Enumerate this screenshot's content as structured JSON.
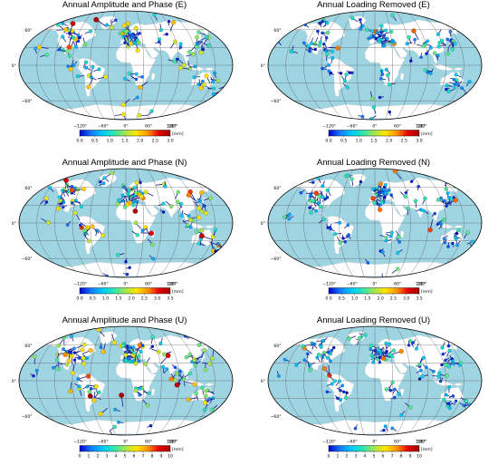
{
  "figure": {
    "panels": [
      {
        "id": "E-amp",
        "title": "Annual Amplitude and Phase (E)",
        "colorbar": {
          "ticks": [
            "0.0",
            "0.5",
            "1.0",
            "1.5",
            "2.0",
            "2.5",
            "3.0"
          ],
          "unit": "[mm]",
          "max": 3.0
        },
        "lon_labels": [
          "−120°",
          "−60°",
          "0°",
          "60°",
          "120°",
          "180°"
        ],
        "lat_labels": [
          "60°",
          "0°",
          "−60°"
        ]
      },
      {
        "id": "E-loading",
        "title": "Annual Loading Removed (E)",
        "colorbar": {
          "ticks": [
            "0.0",
            "0.5",
            "1.0",
            "1.5",
            "2.0",
            "2.5",
            "3.0"
          ],
          "unit": "[mm]",
          "max": 3.0
        },
        "lon_labels": [
          "−120°",
          "−60°",
          "0°",
          "60°",
          "120°",
          "180°"
        ],
        "lat_labels": [
          "60°",
          "0°",
          "−60°"
        ]
      },
      {
        "id": "N-amp",
        "title": "Annual Amplitude and Phase (N)",
        "colorbar": {
          "ticks": [
            "0.0",
            "0.5",
            "1.0",
            "1.5",
            "2.0",
            "2.5",
            "3.0",
            "3.5"
          ],
          "unit": "[mm]",
          "max": 3.5
        },
        "lon_labels": [
          "−120°",
          "−60°",
          "0°",
          "60°",
          "120°",
          "180°"
        ],
        "lat_labels": [
          "60°",
          "0°",
          "−60°"
        ]
      },
      {
        "id": "N-loading",
        "title": "Annual Loading Removed (N)",
        "colorbar": {
          "ticks": [
            "0.0",
            "0.5",
            "1.0",
            "1.5",
            "2.0",
            "2.5",
            "3.0",
            "3.5"
          ],
          "unit": "[mm]",
          "max": 3.5
        },
        "lon_labels": [
          "−120°",
          "−60°",
          "0°",
          "60°",
          "120°",
          "180°"
        ],
        "lat_labels": [
          "60°",
          "0°",
          "−60°"
        ]
      },
      {
        "id": "U-amp",
        "title": "Annual Amplitude and Phase (U)",
        "colorbar": {
          "ticks": [
            "0",
            "1",
            "2",
            "3",
            "4",
            "5",
            "6",
            "7",
            "8",
            "9",
            "10"
          ],
          "unit": "[mm]",
          "max": 10
        },
        "lon_labels": [
          "−120°",
          "−60°",
          "0°",
          "60°",
          "120°",
          "180°"
        ],
        "lat_labels": [
          "60°",
          "0°",
          "−60°"
        ]
      },
      {
        "id": "U-loading",
        "title": "Annual Loading Removed (U)",
        "colorbar": {
          "ticks": [
            "0",
            "1",
            "2",
            "3",
            "4",
            "5",
            "6",
            "7",
            "8",
            "9",
            "10"
          ],
          "unit": "[mm]",
          "max": 10
        },
        "lon_labels": [
          "−120°",
          "−60°",
          "0°",
          "60°",
          "120°",
          "180°"
        ],
        "lat_labels": [
          "60°",
          "0°",
          "−60°"
        ]
      }
    ],
    "colors": {
      "ocean": "#9fd4e3",
      "land": "#ffffff",
      "graticule": "#555555",
      "vector": "#1a1a8c",
      "colormap": [
        "#0000c8",
        "#1478ff",
        "#00c8ff",
        "#28e6b4",
        "#a0e650",
        "#ffe600",
        "#ff9600",
        "#e60000",
        "#a00000"
      ]
    },
    "projection": "Robinson-like (pseudo-elliptical), central meridian 0°",
    "stations_note_visible": false
  }
}
